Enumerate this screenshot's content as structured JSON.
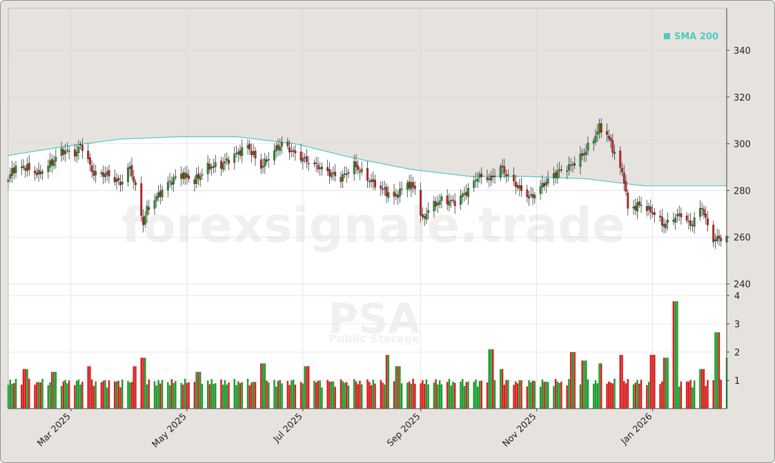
{
  "watermark": "forexsignale.trade",
  "ticker": "PSA",
  "company": "Public Storage",
  "colors": {
    "up": "#1e9b2e",
    "down": "#d62020",
    "sma": "#4fc9c0"
  },
  "chart_data": [
    {
      "type": "candlestick",
      "title": "",
      "legend": {
        "entries": [
          "SMA 200"
        ],
        "placement": "top-right"
      },
      "ylim": [
        235,
        358
      ],
      "yticks": [
        240,
        260,
        280,
        300,
        320,
        340
      ],
      "grid": true,
      "x_start": "2025-01-27",
      "x_end": "2026-02-09",
      "xticks": [
        {
          "date": "2025-03-01",
          "label": "Mar 2025"
        },
        {
          "date": "2025-05-01",
          "label": "May 2025"
        },
        {
          "date": "2025-07-01",
          "label": "Jul 2025"
        },
        {
          "date": "2025-09-01",
          "label": "Sep 2025"
        },
        {
          "date": "2025-11-01",
          "label": "Nov 2025"
        },
        {
          "date": "2026-01-01",
          "label": "Jan 2026"
        }
      ],
      "close_anchors": [
        [
          "2025-01-27",
          284
        ],
        [
          "2025-01-29",
          289
        ],
        [
          "2025-02-05",
          290
        ],
        [
          "2025-02-12",
          287
        ],
        [
          "2025-02-19",
          292
        ],
        [
          "2025-02-24",
          297
        ],
        [
          "2025-03-04",
          296
        ],
        [
          "2025-03-06",
          300
        ],
        [
          "2025-03-13",
          287
        ],
        [
          "2025-03-20",
          287
        ],
        [
          "2025-03-27",
          283
        ],
        [
          "2025-04-01",
          290
        ],
        [
          "2025-04-04",
          281
        ],
        [
          "2025-04-08",
          266
        ],
        [
          "2025-04-10",
          272
        ],
        [
          "2025-04-14",
          276
        ],
        [
          "2025-04-21",
          283
        ],
        [
          "2025-04-28",
          287
        ],
        [
          "2025-05-05",
          284
        ],
        [
          "2025-05-12",
          290
        ],
        [
          "2025-05-19",
          291
        ],
        [
          "2025-05-26",
          295
        ],
        [
          "2025-06-02",
          299
        ],
        [
          "2025-06-09",
          290
        ],
        [
          "2025-06-16",
          297
        ],
        [
          "2025-06-20",
          300
        ],
        [
          "2025-06-30",
          294
        ],
        [
          "2025-07-07",
          291
        ],
        [
          "2025-07-14",
          288
        ],
        [
          "2025-07-21",
          285
        ],
        [
          "2025-07-28",
          291
        ],
        [
          "2025-08-04",
          285
        ],
        [
          "2025-08-11",
          281
        ],
        [
          "2025-08-18",
          277
        ],
        [
          "2025-08-25",
          283
        ],
        [
          "2025-08-29",
          281
        ],
        [
          "2025-09-02",
          267
        ],
        [
          "2025-09-05",
          272
        ],
        [
          "2025-09-12",
          276
        ],
        [
          "2025-09-19",
          275
        ],
        [
          "2025-09-26",
          280
        ],
        [
          "2025-10-01",
          286
        ],
        [
          "2025-10-08",
          285
        ],
        [
          "2025-10-13",
          290
        ],
        [
          "2025-10-17",
          286
        ],
        [
          "2025-10-24",
          280
        ],
        [
          "2025-10-29",
          277
        ],
        [
          "2025-11-05",
          283
        ],
        [
          "2025-11-12",
          288
        ],
        [
          "2025-11-18",
          290
        ],
        [
          "2025-11-24",
          294
        ],
        [
          "2025-12-01",
          302
        ],
        [
          "2025-12-04",
          307
        ],
        [
          "2025-12-08",
          304
        ],
        [
          "2025-12-12",
          296
        ],
        [
          "2025-12-17",
          285
        ],
        [
          "2025-12-19",
          272
        ],
        [
          "2025-12-26",
          274
        ],
        [
          "2026-01-02",
          270
        ],
        [
          "2026-01-07",
          265
        ],
        [
          "2026-01-12",
          268
        ],
        [
          "2026-01-16",
          270
        ],
        [
          "2026-01-21",
          265
        ],
        [
          "2026-01-27",
          273
        ],
        [
          "2026-01-31",
          262
        ],
        [
          "2026-02-02",
          259
        ],
        [
          "2026-02-09",
          260
        ]
      ],
      "sma_200": [
        [
          "2025-01-27",
          295
        ],
        [
          "2025-02-27",
          299
        ],
        [
          "2025-03-27",
          302
        ],
        [
          "2025-04-27",
          303
        ],
        [
          "2025-05-27",
          303
        ],
        [
          "2025-06-27",
          300
        ],
        [
          "2025-07-27",
          294
        ],
        [
          "2025-08-27",
          289
        ],
        [
          "2025-09-27",
          286
        ],
        [
          "2025-10-27",
          286
        ],
        [
          "2025-11-27",
          285
        ],
        [
          "2025-12-27",
          282
        ],
        [
          "2026-01-27",
          282
        ],
        [
          "2026-02-09",
          282
        ]
      ]
    },
    {
      "type": "bar",
      "title": "",
      "series_label": "volume",
      "ylim": [
        0,
        4
      ],
      "yticks": [
        1,
        2,
        3,
        4
      ],
      "grid": true,
      "baseline": 1.0,
      "spikes": [
        [
          "2025-02-05",
          1.4
        ],
        [
          "2025-02-20",
          1.3
        ],
        [
          "2025-03-10",
          1.5
        ],
        [
          "2025-04-04",
          1.5
        ],
        [
          "2025-04-08",
          1.8
        ],
        [
          "2025-05-07",
          1.3
        ],
        [
          "2025-06-10",
          1.6
        ],
        [
          "2025-07-03",
          1.5
        ],
        [
          "2025-08-15",
          1.9
        ],
        [
          "2025-08-20",
          1.5
        ],
        [
          "2025-10-08",
          2.1
        ],
        [
          "2025-10-13",
          1.4
        ],
        [
          "2025-11-20",
          2.0
        ],
        [
          "2025-11-26",
          1.7
        ],
        [
          "2025-12-05",
          1.6
        ],
        [
          "2025-12-15",
          1.9
        ],
        [
          "2026-01-01",
          1.9
        ],
        [
          "2026-01-08",
          1.8
        ],
        [
          "2026-01-13",
          3.8
        ],
        [
          "2026-01-27",
          1.4
        ],
        [
          "2026-02-04",
          2.7
        ],
        [
          "2026-02-08",
          1.8
        ]
      ]
    }
  ]
}
